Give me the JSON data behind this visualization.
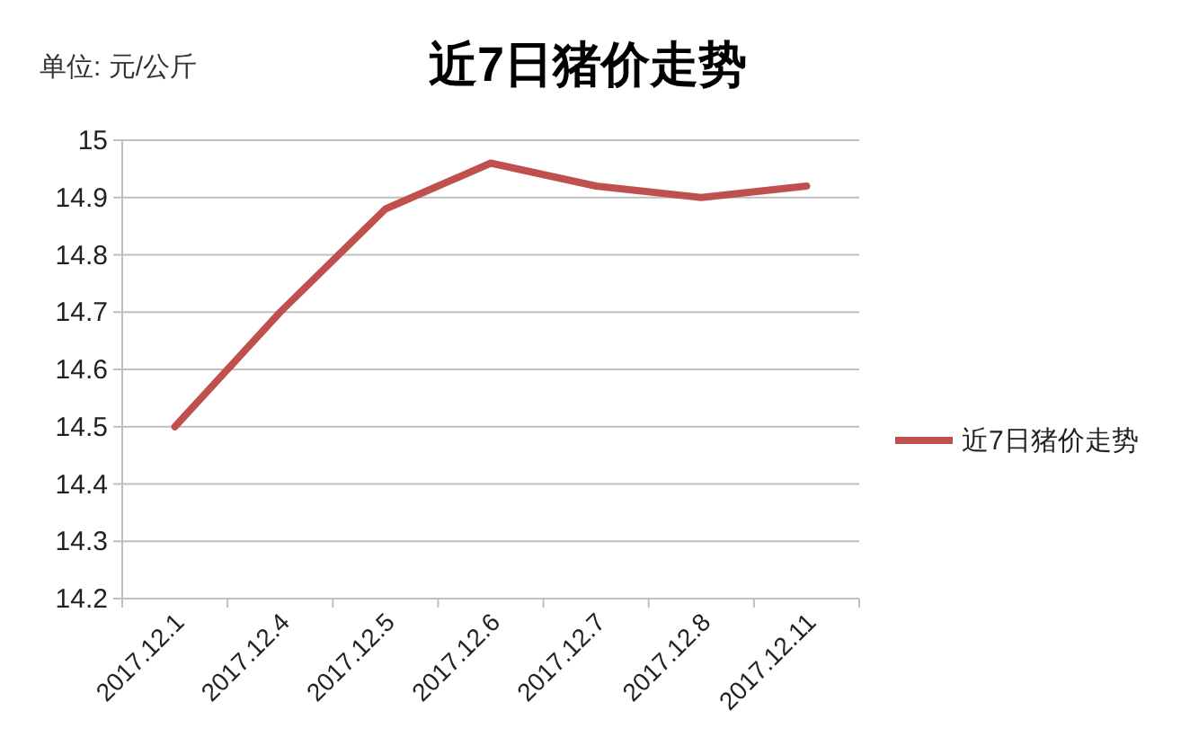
{
  "chart_data": {
    "type": "line",
    "title": "近7日猪价走势",
    "annotations": [
      "单位: 元/公斤"
    ],
    "categories": [
      "2017.12.1",
      "2017.12.4",
      "2017.12.5",
      "2017.12.6",
      "2017.12.7",
      "2017.12.8",
      "2017.12.11"
    ],
    "series": [
      {
        "name": "近7日猪价走势",
        "color": "#c0504d",
        "values": [
          14.5,
          14.7,
          14.88,
          14.96,
          14.92,
          14.9,
          14.92
        ]
      }
    ],
    "ylim": [
      14.2,
      15
    ],
    "yticks": [
      14.2,
      14.3,
      14.4,
      14.5,
      14.6,
      14.7,
      14.8,
      14.9,
      15
    ],
    "grid": "y",
    "legend": "right",
    "marker": "none",
    "line_style": "solid"
  }
}
